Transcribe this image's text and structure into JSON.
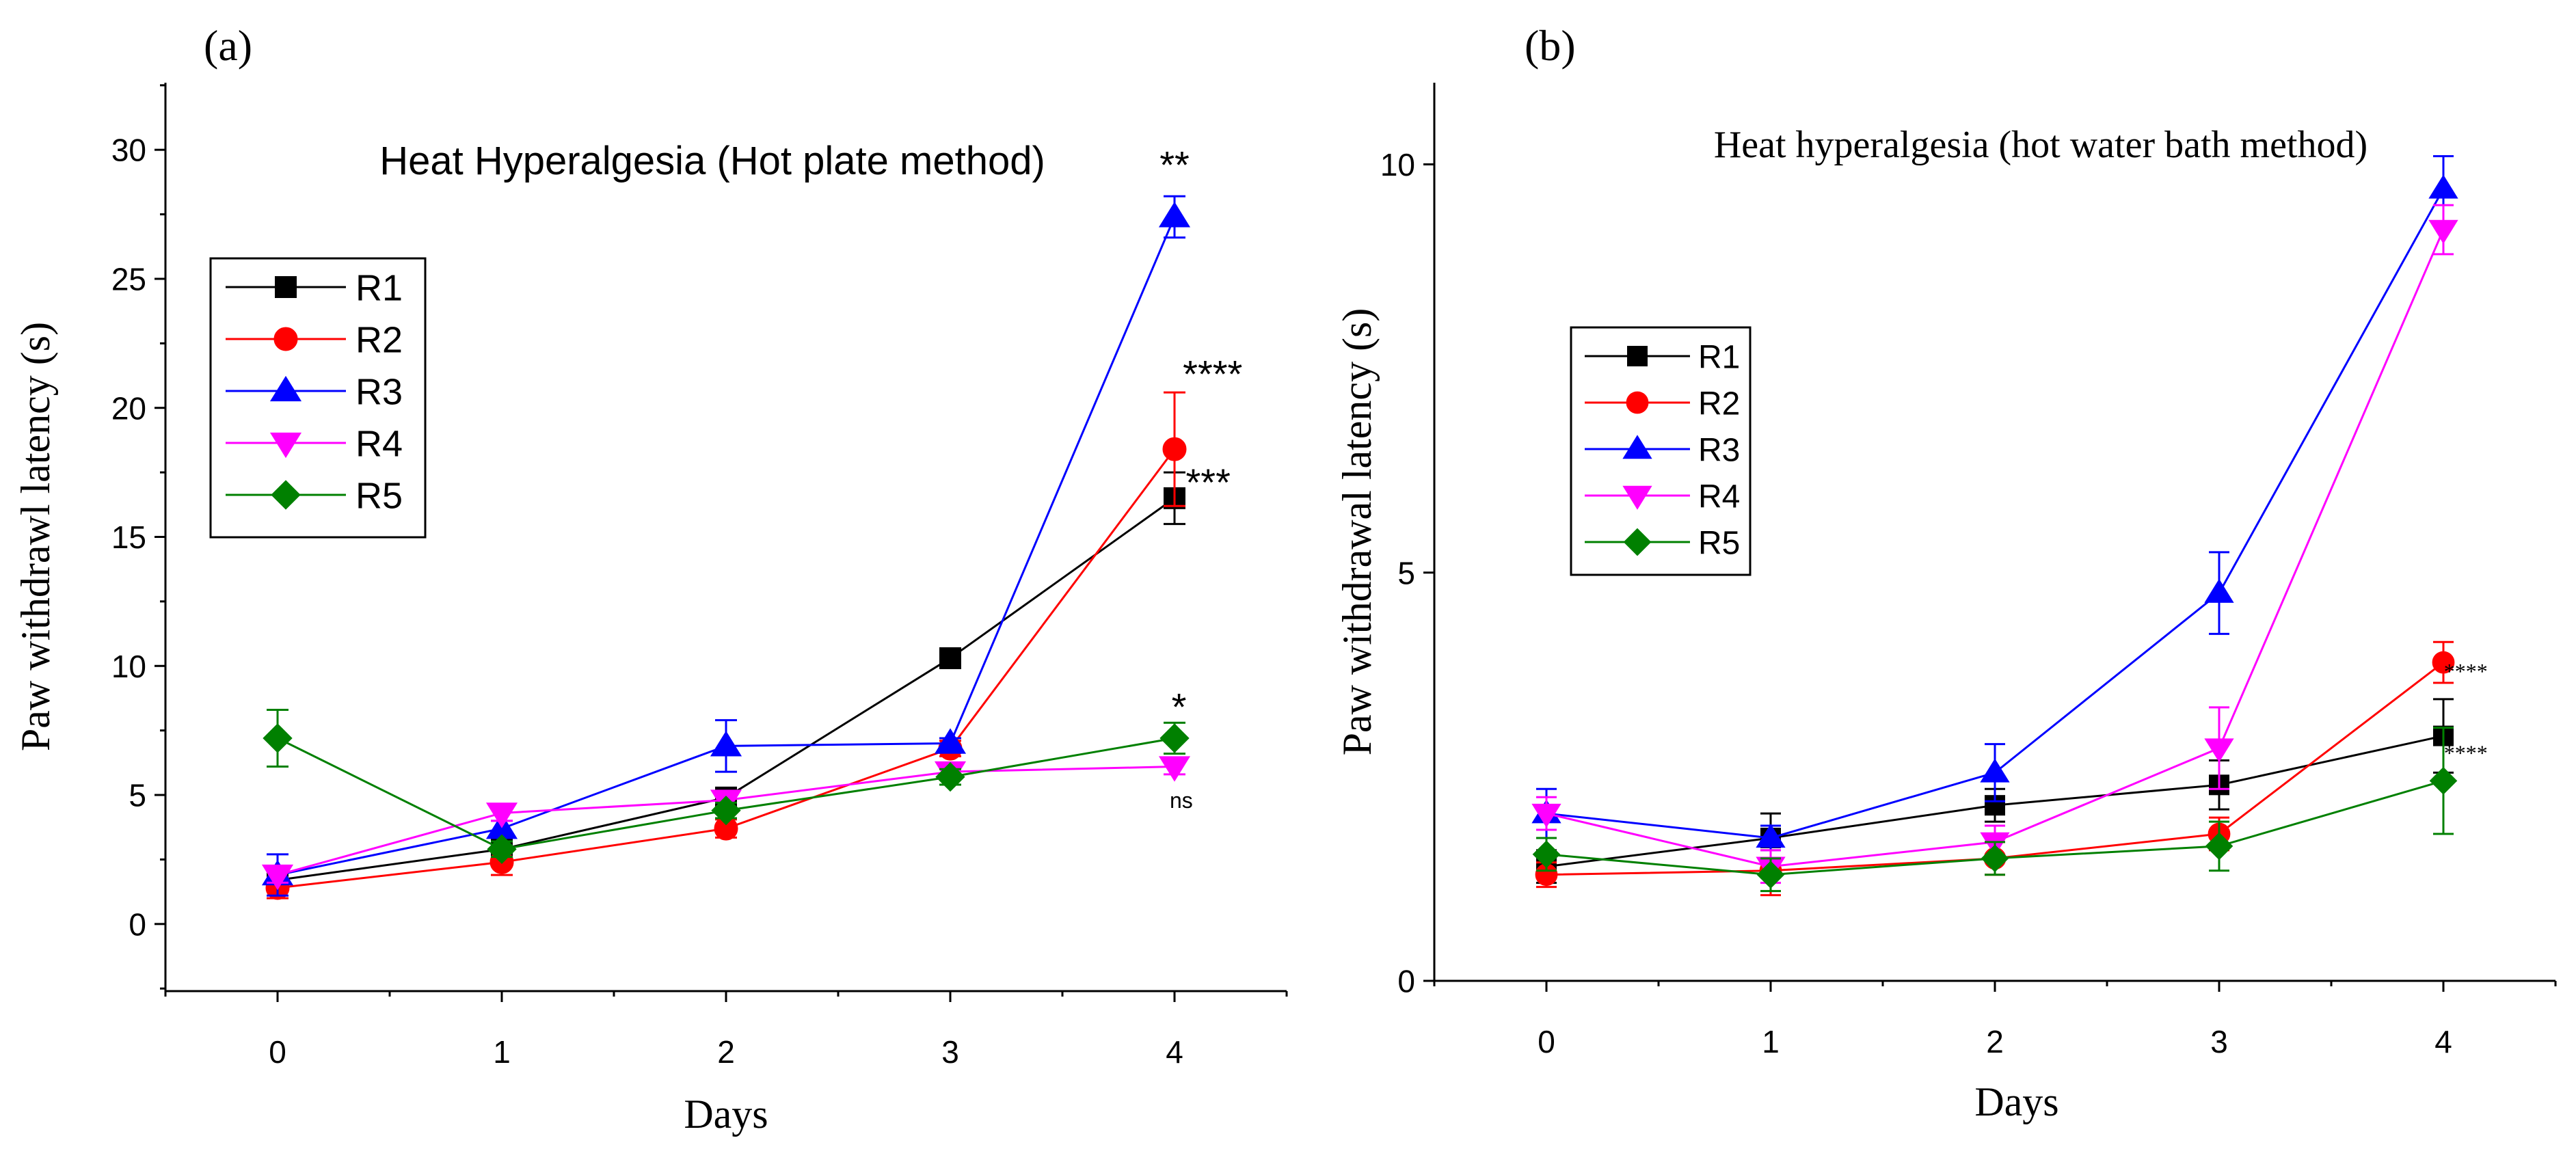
{
  "panels": [
    {
      "id": "a",
      "label": "(a)"
    },
    {
      "id": "b",
      "label": "(b)"
    }
  ],
  "chart_data": [
    {
      "type": "line",
      "title": "Heat Hyperalgesia (Hot plate method)",
      "xlabel": "Days",
      "ylabel": "Paw withdrawl latency (s)",
      "categories": [
        "0",
        "1",
        "2",
        "3",
        "4"
      ],
      "x": [
        0,
        1,
        2,
        3,
        4
      ],
      "xlim": [
        -0.5,
        4.5
      ],
      "ylim": [
        -2.6,
        32.6
      ],
      "yticks": [
        0,
        5,
        10,
        15,
        20,
        25,
        30
      ],
      "legend": "upper-left",
      "series": [
        {
          "name": "R1",
          "color": "#000000",
          "marker": "square",
          "values": [
            1.7,
            2.9,
            4.9,
            10.3,
            16.5
          ],
          "errors": [
            0.3,
            0.2,
            0.3,
            0.35,
            1.0
          ]
        },
        {
          "name": "R2",
          "color": "#ff0000",
          "marker": "circle",
          "values": [
            1.4,
            2.4,
            3.7,
            6.8,
            18.4
          ],
          "errors": [
            0.4,
            0.5,
            0.35,
            0.3,
            2.2
          ]
        },
        {
          "name": "R3",
          "color": "#0000ff",
          "marker": "triangle-up",
          "values": [
            1.9,
            3.7,
            6.9,
            7.0,
            27.4
          ],
          "errors": [
            0.8,
            0.3,
            1.0,
            0.2,
            0.8
          ]
        },
        {
          "name": "R4",
          "color": "#ff00ff",
          "marker": "triangle-down",
          "values": [
            1.9,
            4.3,
            4.8,
            5.9,
            6.1
          ],
          "errors": [
            0.3,
            0.3,
            0.3,
            0.3,
            0.3
          ]
        },
        {
          "name": "R5",
          "color": "#008000",
          "marker": "diamond",
          "values": [
            7.2,
            2.9,
            4.4,
            5.7,
            7.2
          ],
          "errors": [
            1.1,
            0.3,
            0.3,
            0.3,
            0.6
          ]
        }
      ],
      "annotations": [
        {
          "text": "**",
          "x": 4,
          "y": 28.9,
          "size": "large"
        },
        {
          "text": "****",
          "x": 4.17,
          "y": 20.8,
          "size": "large"
        },
        {
          "text": "***",
          "x": 4.15,
          "y": 16.6,
          "size": "large"
        },
        {
          "text": "*",
          "x": 4.02,
          "y": 7.9,
          "size": "large"
        },
        {
          "text": "ns",
          "x": 4.03,
          "y": 4.5,
          "size": "small"
        }
      ]
    },
    {
      "type": "line",
      "title": "Heat hyperalgesia (hot water bath method)",
      "xlabel": "Days",
      "ylabel": "Paw withdrawal latency (s)",
      "categories": [
        "0",
        "1",
        "2",
        "3",
        "4"
      ],
      "x": [
        0,
        1,
        2,
        3,
        4
      ],
      "xlim": [
        -0.5,
        4.5
      ],
      "ylim": [
        0,
        11
      ],
      "yticks": [
        0,
        5,
        10
      ],
      "legend": "upper-left",
      "series": [
        {
          "name": "R1",
          "color": "#000000",
          "marker": "square",
          "values": [
            1.4,
            1.75,
            2.15,
            2.4,
            3.0
          ],
          "errors": [
            0.2,
            0.3,
            0.2,
            0.3,
            0.45
          ]
        },
        {
          "name": "R2",
          "color": "#ff0000",
          "marker": "circle",
          "values": [
            1.3,
            1.35,
            1.5,
            1.8,
            3.9
          ],
          "errors": [
            0.15,
            0.3,
            0.2,
            0.2,
            0.25
          ]
        },
        {
          "name": "R3",
          "color": "#0000ff",
          "marker": "triangle-up",
          "values": [
            2.05,
            1.75,
            2.55,
            4.75,
            9.7
          ],
          "errors": [
            0.3,
            0.15,
            0.35,
            0.5,
            0.4
          ]
        },
        {
          "name": "R4",
          "color": "#ff00ff",
          "marker": "triangle-down",
          "values": [
            2.05,
            1.4,
            1.7,
            2.85,
            9.2
          ],
          "errors": [
            0.2,
            0.2,
            0.2,
            0.5,
            0.3
          ]
        },
        {
          "name": "R5",
          "color": "#008000",
          "marker": "diamond",
          "values": [
            1.55,
            1.3,
            1.5,
            1.65,
            2.45
          ],
          "errors": [
            0.2,
            0.2,
            0.2,
            0.3,
            0.65
          ]
        }
      ],
      "annotations": [
        {
          "text": "****",
          "x": 4.1,
          "y": 3.7,
          "size": "small"
        },
        {
          "text": "****",
          "x": 4.1,
          "y": 2.7,
          "size": "small"
        }
      ]
    }
  ]
}
